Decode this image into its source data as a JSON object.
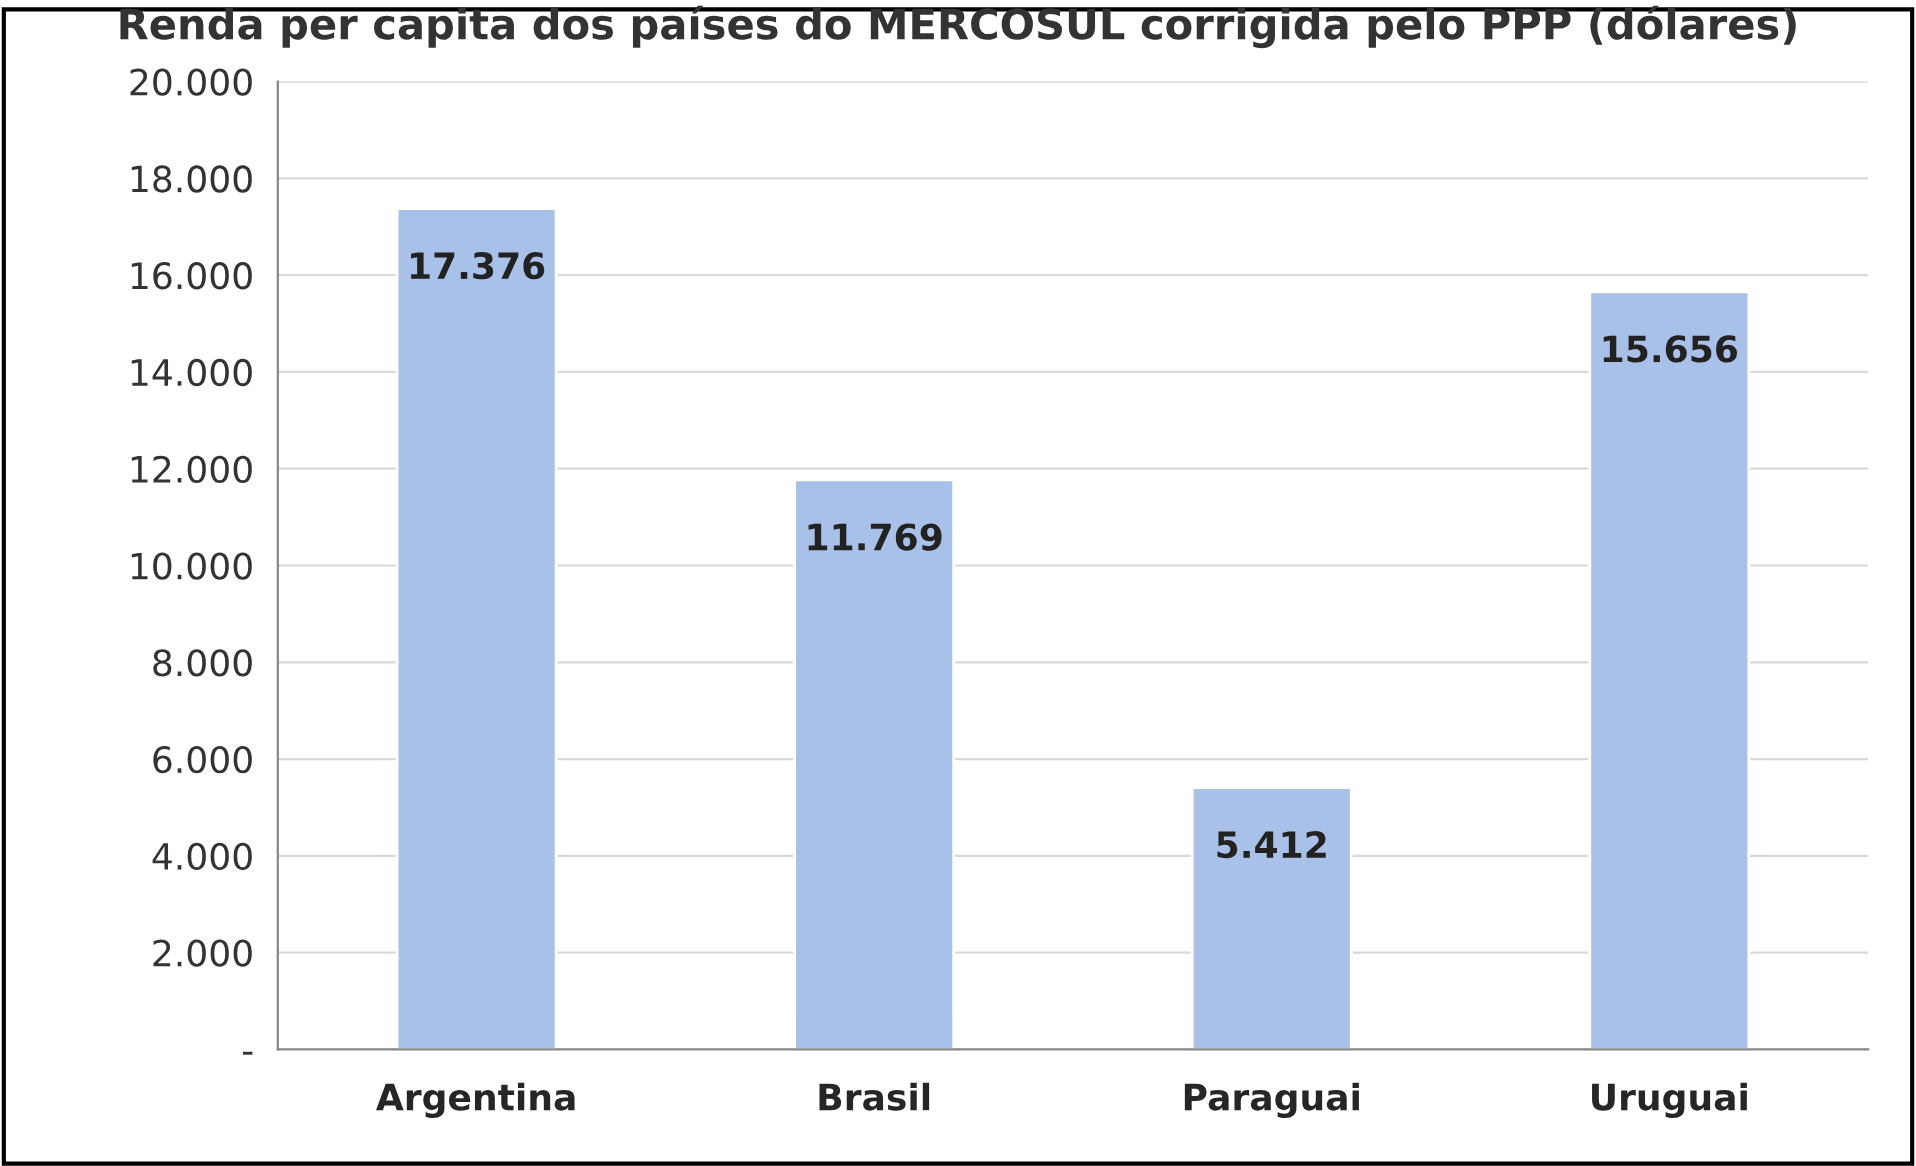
{
  "chart_data": {
    "type": "bar",
    "title": "Renda per capita dos países do MERCOSUL corrigida pelo PPP (dólares)",
    "categories": [
      "Argentina",
      "Brasil",
      "Paraguai",
      "Uruguai"
    ],
    "values": [
      17376,
      11769,
      5412,
      15656
    ],
    "value_labels": [
      "17.376",
      "11.769",
      "5.412",
      "15.656"
    ],
    "color": "#a9c0e8",
    "ylim": [
      0,
      20000
    ],
    "yticks": [
      {
        "value": 0,
        "label": "-"
      },
      {
        "value": 2000,
        "label": "2.000"
      },
      {
        "value": 4000,
        "label": "4.000"
      },
      {
        "value": 6000,
        "label": "6.000"
      },
      {
        "value": 8000,
        "label": "8.000"
      },
      {
        "value": 10000,
        "label": "10.000"
      },
      {
        "value": 12000,
        "label": "12.000"
      },
      {
        "value": 14000,
        "label": "14.000"
      },
      {
        "value": 16000,
        "label": "16.000"
      },
      {
        "value": 18000,
        "label": "18.000"
      },
      {
        "value": 20000,
        "label": "20.000"
      }
    ],
    "grid": "y"
  }
}
